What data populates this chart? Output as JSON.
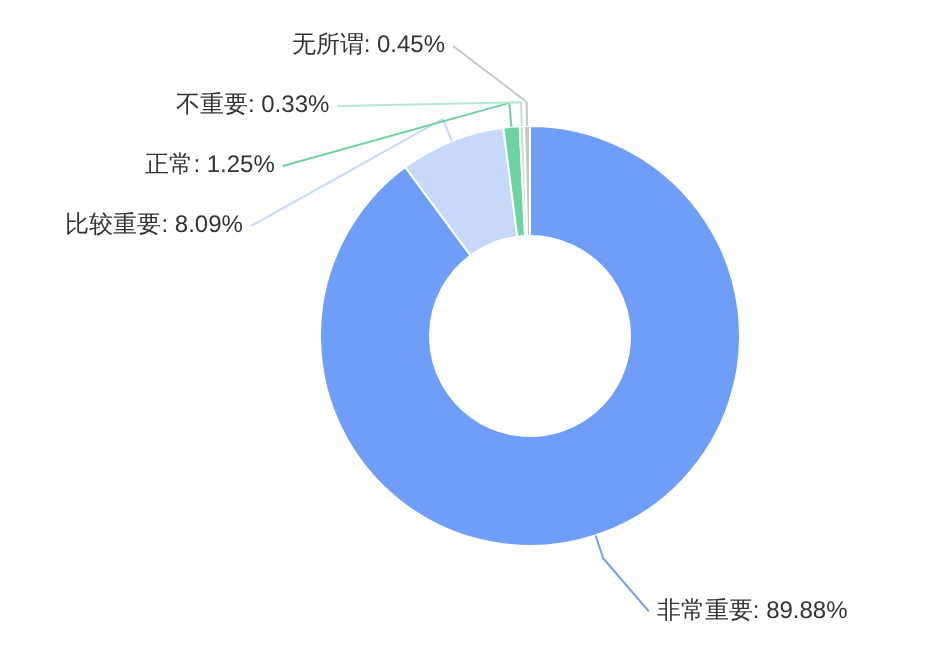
{
  "chart_data": {
    "type": "donut",
    "categories": [
      "非常重要",
      "比较重要",
      "正常",
      "不重要",
      "无所谓"
    ],
    "values": [
      89.88,
      8.09,
      1.25,
      0.33,
      0.45
    ],
    "colors": [
      "#6f9ef8",
      "#c6d9fa",
      "#6dd3a0",
      "#b5e8cf",
      "#c8c8c8"
    ],
    "value_labels": [
      "89.88%",
      "8.09%",
      "1.25%",
      "0.33%",
      "0.45%"
    ]
  }
}
